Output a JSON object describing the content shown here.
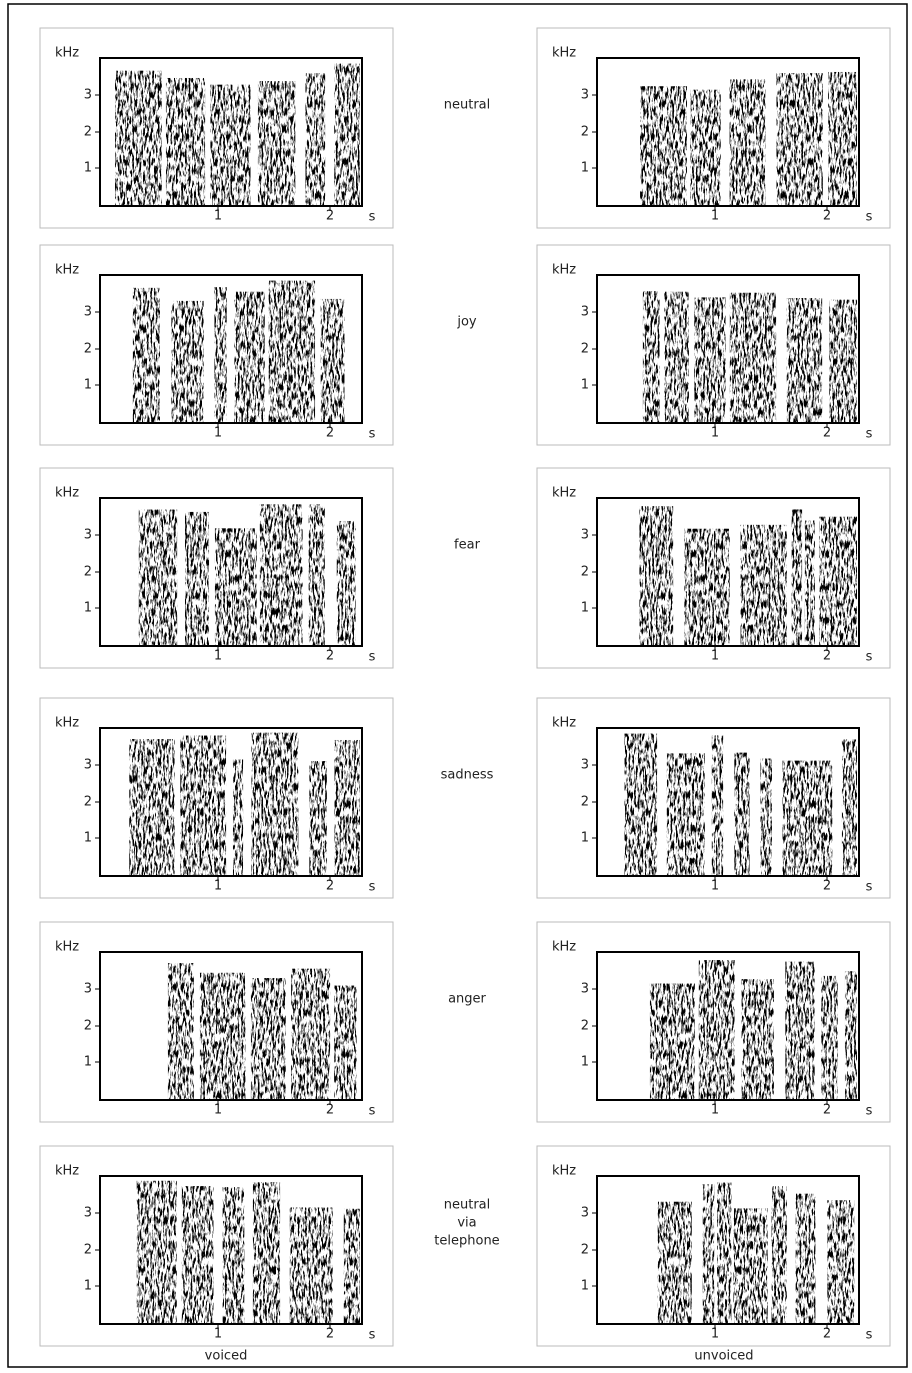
{
  "axis": {
    "y_unit": "kHz",
    "yticks": [
      "1",
      "2",
      "3"
    ],
    "xticks": [
      "1",
      "2"
    ],
    "x_unit": "s"
  },
  "rows": [
    {
      "label": [
        "neutral"
      ]
    },
    {
      "label": [
        "joy"
      ]
    },
    {
      "label": [
        "fear"
      ]
    },
    {
      "label": [
        "sadness"
      ]
    },
    {
      "label": [
        "anger"
      ]
    },
    {
      "label": [
        "neutral",
        "via",
        "telephone"
      ]
    }
  ],
  "columns": [
    "voiced",
    "unvoiced"
  ]
}
